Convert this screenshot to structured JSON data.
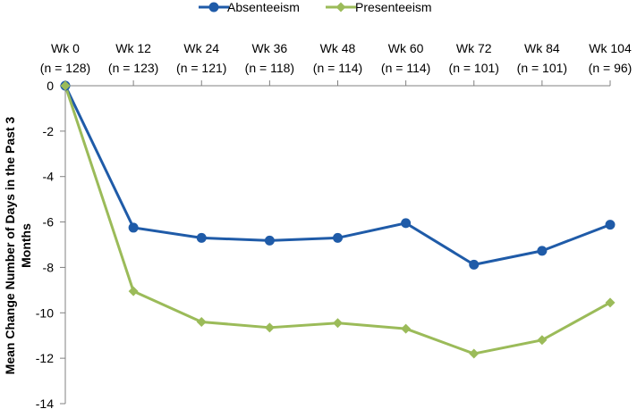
{
  "chart_data": {
    "type": "line",
    "title": "",
    "xlabel": "",
    "ylabel": "Mean Change Number of Days in the Past 3 Months",
    "categories": [
      "Wk 0",
      "Wk 12",
      "Wk 24",
      "Wk 36",
      "Wk 48",
      "Wk 60",
      "Wk 72",
      "Wk 84",
      "Wk 104"
    ],
    "category_counts": [
      "(n = 128)",
      "(n = 123)",
      "(n = 121)",
      "(n = 118)",
      "(n = 114)",
      "(n = 114)",
      "(n = 101)",
      "(n = 101)",
      "(n = 96)"
    ],
    "series": [
      {
        "name": "Absenteeism",
        "color": "#1f5ba8",
        "marker": "circle",
        "values": [
          0,
          -6.25,
          -6.7,
          -6.82,
          -6.7,
          -6.05,
          -7.88,
          -7.27,
          -6.12
        ]
      },
      {
        "name": "Presenteeism",
        "color": "#9bbb59",
        "marker": "diamond",
        "values": [
          0,
          -9.05,
          -10.4,
          -10.65,
          -10.45,
          -10.7,
          -11.8,
          -11.2,
          -9.55
        ]
      }
    ],
    "ylim": [
      -14,
      0
    ],
    "yticks": [
      0,
      -2,
      -4,
      -6,
      -8,
      -10,
      -12,
      -14
    ],
    "grid": false,
    "x_axis_position": "top",
    "legend_position": "top-center"
  }
}
